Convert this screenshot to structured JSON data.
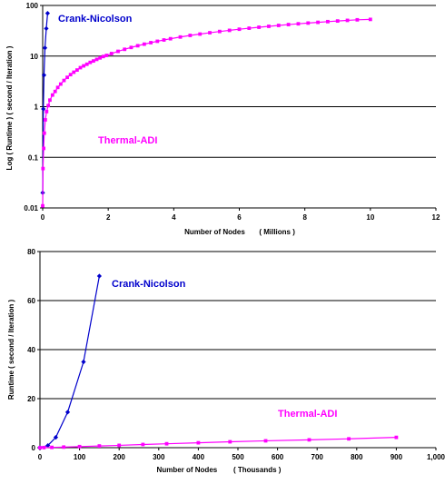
{
  "chart_data": [
    {
      "type": "line",
      "scale_y": "log",
      "xlabel": "Number of Nodes       ( Millions )",
      "ylabel": "Log ( Runtime ) ( second / Iteration )",
      "xlim": [
        0,
        12
      ],
      "ylim": [
        0.01,
        100
      ],
      "x_ticks": [
        "0",
        "2",
        "4",
        "6",
        "8",
        "10",
        "12"
      ],
      "y_ticks": [
        "0.01",
        "0.1",
        "1",
        "10",
        "100"
      ],
      "grid": "horizontal",
      "series": [
        {
          "name": "Crank-Nicolson",
          "color": "#0000cc",
          "marker": "diamond",
          "x": [
            0.0,
            0.02,
            0.04,
            0.07,
            0.11,
            0.15
          ],
          "y": [
            0.02,
            0.9,
            4.2,
            14.5,
            35,
            70
          ]
        },
        {
          "name": "Thermal-ADI",
          "color": "#ff00ff",
          "marker": "square",
          "x": [
            0.0,
            0.01,
            0.03,
            0.05,
            0.08,
            0.12,
            0.17,
            0.22,
            0.3,
            0.38,
            0.46,
            0.55,
            0.65,
            0.75,
            0.85,
            0.95,
            1.05,
            1.15,
            1.25,
            1.35,
            1.45,
            1.55,
            1.65,
            1.75,
            1.85,
            1.95,
            2.1,
            2.3,
            2.5,
            2.7,
            2.9,
            3.1,
            3.3,
            3.5,
            3.7,
            3.9,
            4.2,
            4.5,
            4.8,
            5.1,
            5.4,
            5.7,
            6.0,
            6.3,
            6.6,
            6.9,
            7.2,
            7.5,
            7.8,
            8.1,
            8.4,
            8.7,
            9.0,
            9.3,
            9.6,
            10.0
          ],
          "y": [
            0.011,
            0.06,
            0.15,
            0.3,
            0.55,
            0.8,
            1.05,
            1.35,
            1.7,
            2.0,
            2.4,
            2.8,
            3.3,
            3.8,
            4.3,
            4.8,
            5.3,
            5.9,
            6.4,
            6.9,
            7.5,
            8.0,
            8.6,
            9.2,
            9.8,
            10.3,
            11.2,
            12.4,
            13.6,
            14.8,
            16.0,
            17.2,
            18.4,
            19.6,
            20.8,
            22.0,
            23.8,
            25.6,
            27.2,
            28.9,
            30.6,
            32.2,
            33.9,
            35.5,
            37.1,
            38.7,
            40.3,
            41.9,
            43.4,
            44.9,
            46.4,
            47.9,
            49.3,
            50.7,
            52.0,
            53.0
          ]
        }
      ],
      "labels": [
        {
          "text": "Crank-Nicolson",
          "color": "#0000cc"
        },
        {
          "text": "Thermal-ADI",
          "color": "#ff00ff"
        }
      ]
    },
    {
      "type": "line",
      "scale_y": "linear",
      "xlabel": "Number of Nodes        ( Thousands )",
      "ylabel": "Runtime ( second / Iteration )",
      "xlim": [
        0,
        1000
      ],
      "ylim": [
        0,
        80
      ],
      "x_ticks": [
        "0",
        "100",
        "200",
        "300",
        "400",
        "500",
        "600",
        "700",
        "800",
        "900",
        "1,000"
      ],
      "y_ticks": [
        "0",
        "20",
        "40",
        "60",
        "80"
      ],
      "grid": "horizontal",
      "series": [
        {
          "name": "Crank-Nicolson",
          "color": "#0000cc",
          "marker": "diamond",
          "x": [
            0,
            20,
            40,
            70,
            110,
            150
          ],
          "y": [
            0.02,
            0.9,
            4.2,
            14.5,
            35,
            70
          ]
        },
        {
          "name": "Thermal-ADI",
          "color": "#ff00ff",
          "marker": "square",
          "x": [
            0,
            10,
            30,
            60,
            100,
            150,
            200,
            260,
            320,
            400,
            480,
            570,
            680,
            780,
            900
          ],
          "y": [
            0.0,
            0.05,
            0.12,
            0.25,
            0.45,
            0.7,
            0.95,
            1.3,
            1.6,
            2.0,
            2.4,
            2.8,
            3.2,
            3.6,
            4.2
          ]
        }
      ],
      "labels": [
        {
          "text": "Crank-Nicolson",
          "color": "#0000cc"
        },
        {
          "text": "Thermal-ADI",
          "color": "#ff00ff"
        }
      ]
    }
  ]
}
